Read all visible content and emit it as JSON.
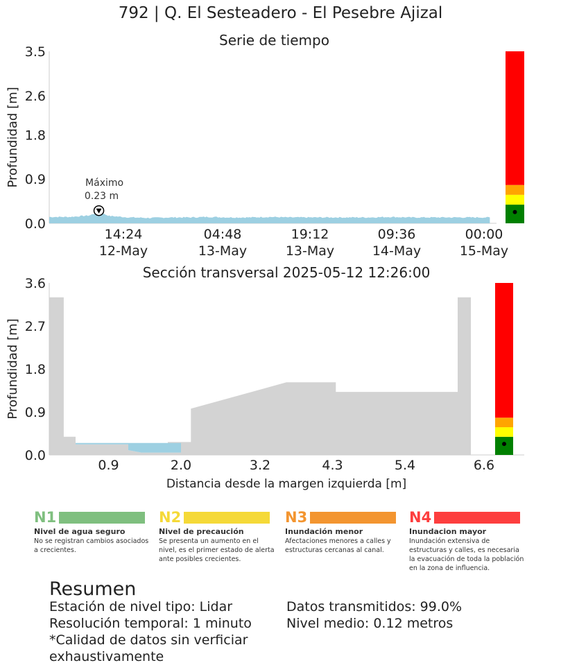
{
  "title": "792 | Q. El Sesteadero - El Pesebre Ajizal",
  "colors": {
    "water": "#9dd0e2",
    "terrain": "#d3d3d3",
    "level_green": "#008000",
    "level_yellow": "#ffff00",
    "level_orange": "#ffa500",
    "level_red": "#ff0000"
  },
  "chart_data": [
    {
      "type": "area",
      "title": "Serie de tiempo",
      "ylabel": "Profundidad [m]",
      "ylim": [
        0,
        3.5
      ],
      "yticks": [
        "0.0",
        "0.9",
        "1.8",
        "2.6",
        "3.5"
      ],
      "xticks": [
        {
          "time": "14:24",
          "date": "12-May"
        },
        {
          "time": "04:48",
          "date": "13-May"
        },
        {
          "time": "19:12",
          "date": "13-May"
        },
        {
          "time": "09:36",
          "date": "14-May"
        },
        {
          "time": "00:00",
          "date": "15-May"
        }
      ],
      "x_start": "2025-05-12 05:00",
      "x_end": "2025-05-15 00:00",
      "series": [
        {
          "x": [
            "2025-05-12 05:00",
            "2025-05-12 08:00",
            "2025-05-12 11:00",
            "2025-05-12 12:26",
            "2025-05-12 14:00",
            "2025-05-12 17:00",
            "2025-05-12 20:00",
            "2025-05-12 23:00",
            "2025-05-13 02:00",
            "2025-05-13 05:00",
            "2025-05-13 08:00",
            "2025-05-13 11:00",
            "2025-05-13 14:00",
            "2025-05-13 17:00",
            "2025-05-13 20:00",
            "2025-05-13 23:00",
            "2025-05-14 02:00",
            "2025-05-14 05:00",
            "2025-05-14 08:00",
            "2025-05-14 11:00",
            "2025-05-14 14:00",
            "2025-05-14 17:00",
            "2025-05-14 20:00",
            "2025-05-14 23:00"
          ],
          "y": [
            0.13,
            0.13,
            0.16,
            0.23,
            0.15,
            0.12,
            0.11,
            0.12,
            0.12,
            0.13,
            0.12,
            0.12,
            0.13,
            0.12,
            0.12,
            0.12,
            0.12,
            0.12,
            0.13,
            0.12,
            0.12,
            0.12,
            0.12,
            0.12
          ]
        }
      ],
      "annotation": {
        "label": "Máximo",
        "value": "0.23 m",
        "x": "2025-05-12 12:26",
        "y": 0.23
      },
      "level_bar": {
        "thresholds": [
          0.38,
          0.58,
          0.78,
          3.5
        ],
        "current": 0.23
      }
    },
    {
      "type": "area",
      "title": "Sección transversal 2025-05-12 12:26:00",
      "xlabel": "Distancia desde la margen izquierda [m]",
      "ylabel": "Profundidad [m]",
      "xlim": [
        0,
        6.6
      ],
      "ylim": [
        0,
        3.6
      ],
      "xticks": [
        "0.9",
        "2.0",
        "3.2",
        "4.3",
        "5.4",
        "6.6"
      ],
      "yticks": [
        "0.0",
        "0.9",
        "1.8",
        "2.7",
        "3.6"
      ],
      "terrain": {
        "x": [
          0,
          0,
          0.22,
          0.22,
          0.4,
          0.4,
          1.2,
          1.2,
          1.4,
          2.0,
          2.0,
          1.8,
          1.8,
          2.15,
          2.15,
          3.6,
          4.35,
          4.35,
          6.2,
          6.2,
          6.4,
          6.4
        ],
        "y": [
          0,
          3.3,
          3.3,
          0.38,
          0.38,
          0.22,
          0.22,
          0.1,
          0.05,
          0.05,
          0.22,
          0.22,
          0.27,
          0.27,
          0.97,
          1.52,
          1.52,
          1.32,
          1.32,
          3.3,
          3.3,
          0
        ]
      },
      "water": {
        "x": [
          0.4,
          2.0,
          2.0,
          1.4,
          1.2,
          1.2,
          0.4
        ],
        "y": [
          0.25,
          0.25,
          0.05,
          0.05,
          0.1,
          0.22,
          0.22
        ]
      },
      "level_bar": {
        "thresholds": [
          0.38,
          0.58,
          0.78,
          3.6
        ],
        "current": 0.23
      }
    }
  ],
  "legend": [
    {
      "code": "N1",
      "name": "Nivel de agua seguro",
      "desc": "No se registran cambios asociados a crecientes.",
      "color": "#7fbf7f"
    },
    {
      "code": "N2",
      "name": "Nivel de precaución",
      "desc": "Se presenta un aumento en el nivel, es el primer estado de alerta ante posibles crecientes.",
      "color": "#f5d938"
    },
    {
      "code": "N3",
      "name": "Inundación menor",
      "desc": "Afectaciones menores a calles y estructuras cercanas al canal.",
      "color": "#f39530"
    },
    {
      "code": "N4",
      "name": "Inundacion mayor",
      "desc": "Inundación extensiva de estructuras y calles, es necesaria la evacuación de toda la población en la zona de influencia.",
      "color": "#fd3e3e"
    }
  ],
  "summary": {
    "title": "Resumen",
    "left": [
      "Estación de nivel tipo: Lidar",
      "Resolución temporal: 1 minuto",
      "*Calidad de datos sin verficiar",
      "exhaustivamente"
    ],
    "right": [
      "Datos transmitidos: 99.0%",
      "Nivel medio: 0.12 metros"
    ]
  }
}
